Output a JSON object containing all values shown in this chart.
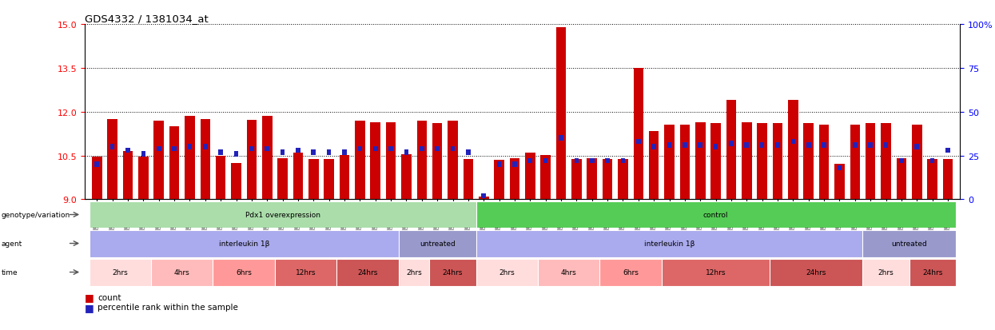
{
  "title": "GDS4332 / 1381034_at",
  "samples": [
    "GSM998740",
    "GSM998753",
    "GSM998766",
    "GSM998774",
    "GSM998729",
    "GSM998754",
    "GSM998767",
    "GSM998775",
    "GSM998741",
    "GSM998755",
    "GSM998768",
    "GSM998776",
    "GSM998730",
    "GSM998742",
    "GSM998747",
    "GSM998777",
    "GSM998731",
    "GSM998748",
    "GSM998756",
    "GSM998769",
    "GSM998732",
    "GSM998749",
    "GSM998757",
    "GSM998778",
    "GSM998733",
    "GSM998758",
    "GSM998770",
    "GSM998779",
    "GSM998734",
    "GSM998743",
    "GSM998759",
    "GSM998780",
    "GSM998735",
    "GSM998750",
    "GSM998760",
    "GSM998782",
    "GSM998744",
    "GSM998751",
    "GSM998761",
    "GSM998771",
    "GSM998736",
    "GSM998745",
    "GSM998762",
    "GSM998781",
    "GSM998737",
    "GSM998752",
    "GSM998763",
    "GSM998772",
    "GSM998738",
    "GSM998764",
    "GSM998773",
    "GSM998783",
    "GSM998739",
    "GSM998746",
    "GSM998765",
    "GSM998784"
  ],
  "counts": [
    10.45,
    11.75,
    10.65,
    10.45,
    11.7,
    11.5,
    11.85,
    11.75,
    10.48,
    10.25,
    11.72,
    11.85,
    10.42,
    10.6,
    10.38,
    10.38,
    10.52,
    11.7,
    11.65,
    11.65,
    10.55,
    11.7,
    11.62,
    11.7,
    10.38,
    9.1,
    10.35,
    10.4,
    10.6,
    10.52,
    14.9,
    10.38,
    10.42,
    10.38,
    10.38,
    13.5,
    11.35,
    11.55,
    11.55,
    11.65,
    11.6,
    12.4,
    11.65,
    11.6,
    11.6,
    12.4,
    11.62,
    11.55,
    10.22,
    11.55,
    11.6,
    11.6,
    10.42,
    11.55,
    10.38,
    10.38
  ],
  "percentiles": [
    20,
    30,
    28,
    26,
    29,
    29,
    30,
    30,
    27,
    26,
    29,
    29,
    27,
    28,
    27,
    27,
    27,
    29,
    29,
    29,
    27,
    29,
    29,
    29,
    27,
    2,
    20,
    20,
    22,
    22,
    35,
    22,
    22,
    22,
    22,
    33,
    30,
    31,
    31,
    31,
    30,
    32,
    31,
    31,
    31,
    33,
    31,
    31,
    18,
    31,
    31,
    31,
    22,
    30,
    22,
    28
  ],
  "ylim_left": [
    9,
    15
  ],
  "ylim_right": [
    0,
    100
  ],
  "yticks_left": [
    9,
    10.5,
    12,
    13.5,
    15
  ],
  "yticks_right": [
    0,
    25,
    50,
    75,
    100
  ],
  "bar_color": "#cc0000",
  "dot_color": "#2222bb",
  "groups": {
    "genotype": [
      {
        "label": "Pdx1 overexpression",
        "start": 0,
        "end": 25,
        "color": "#aaddaa"
      },
      {
        "label": "control",
        "start": 25,
        "end": 56,
        "color": "#55cc55"
      }
    ],
    "agent": [
      {
        "label": "interleukin 1β",
        "start": 0,
        "end": 20,
        "color": "#aaaaee"
      },
      {
        "label": "untreated",
        "start": 20,
        "end": 25,
        "color": "#9999cc"
      },
      {
        "label": "interleukin 1β",
        "start": 25,
        "end": 50,
        "color": "#aaaaee"
      },
      {
        "label": "untreated",
        "start": 50,
        "end": 56,
        "color": "#9999cc"
      }
    ],
    "time": [
      {
        "label": "2hrs",
        "start": 0,
        "end": 4,
        "color": "#ffdddd"
      },
      {
        "label": "4hrs",
        "start": 4,
        "end": 8,
        "color": "#ffbbbb"
      },
      {
        "label": "6hrs",
        "start": 8,
        "end": 12,
        "color": "#ff9999"
      },
      {
        "label": "12hrs",
        "start": 12,
        "end": 16,
        "color": "#dd6666"
      },
      {
        "label": "24hrs",
        "start": 16,
        "end": 20,
        "color": "#cc5555"
      },
      {
        "label": "2hrs",
        "start": 20,
        "end": 22,
        "color": "#ffdddd"
      },
      {
        "label": "24hrs",
        "start": 22,
        "end": 25,
        "color": "#cc5555"
      },
      {
        "label": "2hrs",
        "start": 25,
        "end": 29,
        "color": "#ffdddd"
      },
      {
        "label": "4hrs",
        "start": 29,
        "end": 33,
        "color": "#ffbbbb"
      },
      {
        "label": "6hrs",
        "start": 33,
        "end": 37,
        "color": "#ff9999"
      },
      {
        "label": "12hrs",
        "start": 37,
        "end": 44,
        "color": "#dd6666"
      },
      {
        "label": "24hrs",
        "start": 44,
        "end": 50,
        "color": "#cc5555"
      },
      {
        "label": "2hrs",
        "start": 50,
        "end": 53,
        "color": "#ffdddd"
      },
      {
        "label": "24hrs",
        "start": 53,
        "end": 56,
        "color": "#cc5555"
      }
    ]
  },
  "annot_row_labels": [
    "genotype/variation",
    "agent",
    "time"
  ],
  "legend_count_label": "count",
  "legend_pct_label": "percentile rank within the sample"
}
